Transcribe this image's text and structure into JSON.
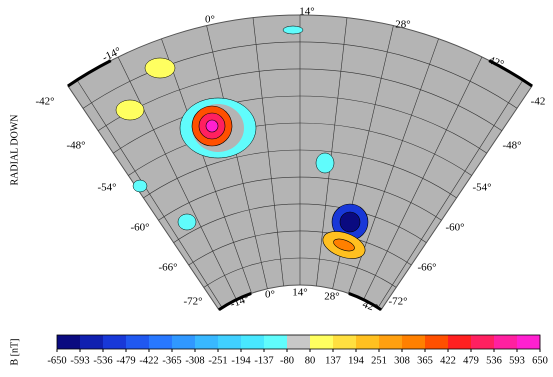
{
  "map": {
    "title": "RADIAL DOWN",
    "top_labels": [
      "-14°",
      "0°",
      "14°",
      "28°",
      "42°"
    ],
    "left_labels": [
      "-42°",
      "-48°",
      "-54°",
      "-60°",
      "-66°",
      "-72°"
    ],
    "right_labels": [
      "-42",
      "-48°",
      "-54°",
      "-60°",
      "-66°",
      "-72°"
    ],
    "bottom_labels": [
      "-72°",
      "-14°",
      "0°",
      "14°",
      "28°",
      "42°"
    ]
  },
  "colorbar": {
    "label": "B [nT]",
    "ticks": [
      -650,
      -593,
      -536,
      -479,
      -422,
      -365,
      -308,
      -251,
      -194,
      -137,
      -80,
      80,
      137,
      194,
      251,
      308,
      365,
      422,
      479,
      536,
      593,
      650
    ],
    "colors": [
      "#0a0a80",
      "#1020b0",
      "#1838d8",
      "#2058f0",
      "#2878ff",
      "#3098ff",
      "#38b8ff",
      "#40d0ff",
      "#48e8ff",
      "#60fcfc",
      "#c8c8c8",
      "#ffff60",
      "#ffe040",
      "#ffc020",
      "#ffa010",
      "#ff8000",
      "#ff5000",
      "#ff2020",
      "#ff2060",
      "#ff20a0",
      "#ff20d0"
    ]
  }
}
